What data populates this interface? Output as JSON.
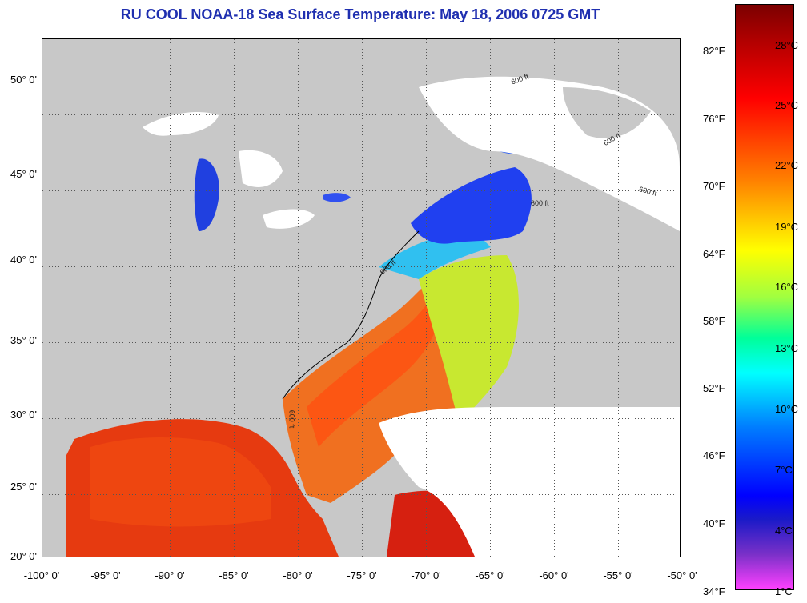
{
  "title": "RU COOL  NOAA-18  Sea Surface Temperature:  May 18, 2006 0725 GMT",
  "latitude_labels": [
    "50° 0'",
    "45° 0'",
    "40° 0'",
    "35° 0'",
    "30° 0'",
    "25° 0'",
    "20° 0'"
  ],
  "longitude_labels": [
    "-100° 0'",
    "-95° 0'",
    "-90° 0'",
    "-85° 0'",
    "-80° 0'",
    "-75° 0'",
    "-70° 0'",
    "-65° 0'",
    "-60° 0'",
    "-55° 0'",
    "-50° 0'"
  ],
  "colorbar": {
    "fahrenheit_labels": [
      "82°F",
      "76°F",
      "70°F",
      "64°F",
      "58°F",
      "52°F",
      "46°F",
      "40°F",
      "34°F"
    ],
    "celsius_labels": [
      "28°C",
      "25°C",
      "22°C",
      "19°C",
      "16°C",
      "13°C",
      "10°C",
      "7°C",
      "4°C",
      "1°C"
    ]
  },
  "contour_labels": [
    "600 ft",
    "600 ft",
    "600 ft",
    "600 ft",
    "600 ft",
    "600 ft"
  ],
  "colors": {
    "title": "#1f2fb0",
    "land": "#c8c8c8",
    "cloud": "#ffffff",
    "warm": "#e83010",
    "cold": "#1030e0"
  }
}
